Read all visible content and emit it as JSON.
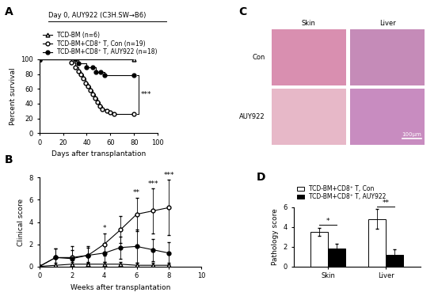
{
  "chart_data": [
    {
      "panel": "A",
      "type": "line",
      "title": "Day 0, AUY922 (C3H.SW→B6)",
      "xlabel": "Days after transplantation",
      "ylabel": "Percent survival",
      "xlim": [
        0,
        100
      ],
      "xticks": [
        0,
        20,
        40,
        60,
        80,
        100
      ],
      "ylim": [
        0,
        100
      ],
      "yticks": [
        0,
        20,
        40,
        60,
        80,
        100
      ],
      "line_style": "steps",
      "legend": "above",
      "significance": {
        "text": "***",
        "between": [
          "TCD-BM+CD8⁺ T, Con (n=19)",
          "TCD-BM+CD8⁺ T, AUY922 (n=18)"
        ]
      },
      "series": [
        {
          "name": "TCD-BM (n=6)",
          "color": "#ffffff",
          "marker": "triangle",
          "x": [
            0,
            80
          ],
          "values": [
            100,
            100
          ]
        },
        {
          "name": "TCD-BM+CD8⁺ T, Con (n=19)",
          "color": "#ffffff",
          "marker": "circle",
          "x": [
            0,
            27,
            30,
            33,
            35,
            37,
            39,
            41,
            43,
            45,
            47,
            49,
            51,
            53,
            57,
            60,
            63,
            80
          ],
          "values": [
            100,
            95,
            89,
            84,
            79,
            74,
            68,
            63,
            58,
            53,
            47,
            42,
            37,
            32,
            30,
            28,
            26,
            26
          ]
        },
        {
          "name": "TCD-BM+CD8⁺ T, AUY922 (n=18)",
          "color": "#000000",
          "marker": "circle",
          "x": [
            0,
            30,
            33,
            40,
            45,
            48,
            52,
            55,
            80
          ],
          "values": [
            100,
            100,
            94,
            89,
            89,
            83,
            83,
            78,
            78
          ]
        }
      ]
    },
    {
      "panel": "B",
      "type": "line",
      "xlabel": "Weeks after transplantation",
      "ylabel": "Clinical score",
      "xlim": [
        0,
        10
      ],
      "xticks": [
        0,
        2,
        4,
        6,
        8,
        10
      ],
      "ylim": [
        0,
        8
      ],
      "yticks": [
        0,
        2,
        4,
        6,
        8
      ],
      "x": [
        0,
        1,
        2,
        3,
        4,
        5,
        6,
        7,
        8
      ],
      "significance": [
        null,
        null,
        null,
        null,
        "*",
        null,
        "**",
        "***",
        "***"
      ],
      "series": [
        {
          "name": "TCD-BM (n=6)",
          "color": "#ffffff",
          "marker": "triangle",
          "values": [
            0,
            0.1,
            0.2,
            0.2,
            0.2,
            0.2,
            0.1,
            0.1,
            0.1
          ],
          "errors": [
            0,
            0.2,
            0.2,
            0.2,
            0.2,
            0.2,
            0.2,
            0.2,
            0.2
          ]
        },
        {
          "name": "TCD-BM+CD8⁺ T, Con (n=19)",
          "color": "#ffffff",
          "marker": "circle",
          "values": [
            0,
            0.8,
            0.8,
            1.0,
            2.0,
            3.3,
            4.7,
            5.0,
            5.3
          ],
          "errors": [
            0,
            0.8,
            1.0,
            0.8,
            1.0,
            1.2,
            1.5,
            2.0,
            2.5
          ]
        },
        {
          "name": "TCD-BM+CD8⁺ T, AUY922 (n=18)",
          "color": "#000000",
          "marker": "circle",
          "values": [
            0,
            0.8,
            0.7,
            1.0,
            1.2,
            1.7,
            1.8,
            1.5,
            1.2
          ],
          "errors": [
            0,
            0.8,
            0.8,
            0.7,
            0.8,
            1.0,
            1.5,
            1.0,
            1.0
          ]
        }
      ]
    },
    {
      "panel": "D",
      "type": "bar",
      "ylabel": "Pathology score",
      "categories": [
        "Skin",
        "Liver"
      ],
      "ylim": [
        0,
        6
      ],
      "yticks": [
        0,
        2,
        4,
        6
      ],
      "legend": "above",
      "significance": [
        "*",
        "**"
      ],
      "series": [
        {
          "name": "TCD-BM+CD8⁺ T, Con",
          "color": "#ffffff",
          "values": [
            3.5,
            4.8
          ],
          "errors": [
            0.4,
            1.0
          ]
        },
        {
          "name": "TCD-BM+CD8⁺ T, AUY922",
          "color": "#000000",
          "values": [
            1.8,
            1.2
          ],
          "errors": [
            0.5,
            0.5
          ]
        }
      ]
    }
  ],
  "images": {
    "panel": "C",
    "columns": [
      "Skin",
      "Liver"
    ],
    "rows": [
      "Con",
      "AUY922"
    ],
    "scale_bar": "100μm"
  }
}
